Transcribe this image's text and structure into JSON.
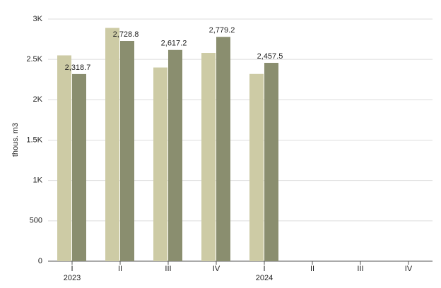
{
  "chart_data": {
    "type": "bar",
    "y_label": "thous. m3",
    "categories": [
      "I",
      "II",
      "III",
      "IV",
      "I",
      "II",
      "III",
      "IV"
    ],
    "year_labels": [
      "2023",
      null,
      null,
      null,
      "2024",
      null,
      null,
      null
    ],
    "series": [
      {
        "color": "#cdcba5",
        "values": [
          2550,
          2890,
          2400,
          2580,
          2320,
          null,
          null,
          null
        ]
      },
      {
        "color": "#8a8e6f",
        "values": [
          2318.7,
          2728.8,
          2617.2,
          2779.2,
          2457.5,
          null,
          null,
          null
        ],
        "value_labels": [
          "2,318.7",
          "2,728.8",
          "2,617.2",
          "2,779.2",
          "2,457.5",
          null,
          null,
          null
        ]
      }
    ],
    "ylim": [
      0,
      3000
    ],
    "yticks": [
      0,
      500,
      {
        "value": 1000,
        "label": "1K"
      },
      {
        "value": 1500,
        "label": "1.5K"
      },
      {
        "value": 2000,
        "label": "2K"
      },
      {
        "value": 2500,
        "label": "2.5K"
      },
      {
        "value": 3000,
        "label": "3K"
      }
    ],
    "grid": true
  }
}
